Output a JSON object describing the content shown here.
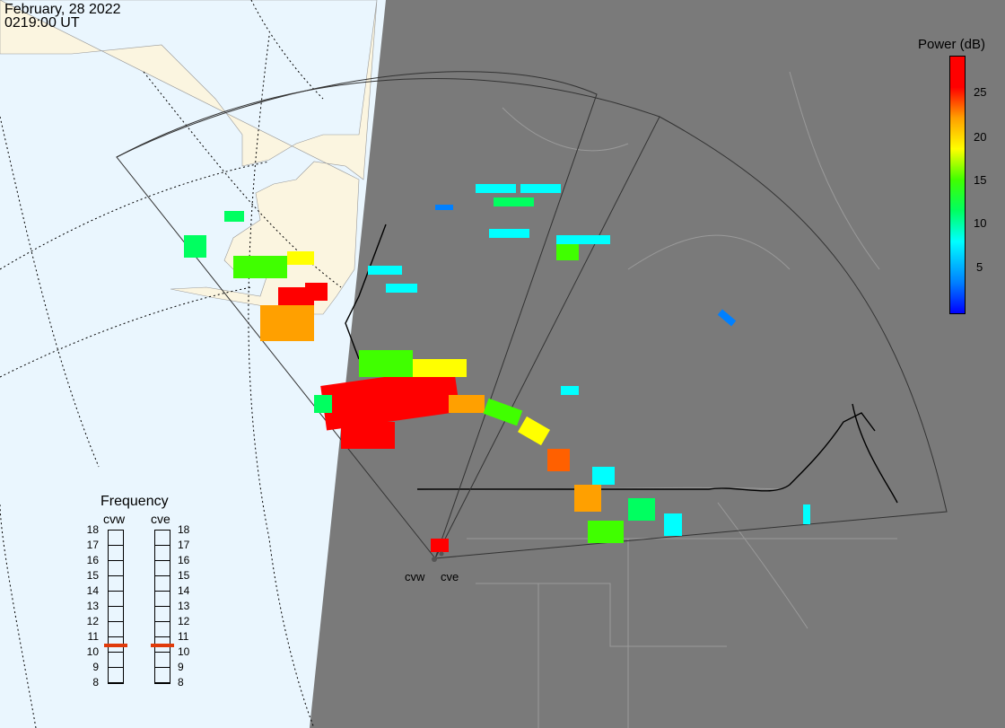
{
  "header": {
    "date": "February, 28 2022",
    "time": "0219:00 UT"
  },
  "colorbar": {
    "title": "Power (dB)",
    "ticks": [
      "25",
      "20",
      "15",
      "10",
      "5"
    ],
    "colors": [
      "#0000ff",
      "#0080ff",
      "#00ffff",
      "#00ff60",
      "#40ff00",
      "#ffff00",
      "#ffa000",
      "#ff0000"
    ]
  },
  "frequency": {
    "title": "Frequency",
    "radars": [
      {
        "name": "cvw",
        "selected_mhz": 11
      },
      {
        "name": "cve",
        "selected_mhz": 11
      }
    ],
    "scale": [
      "18",
      "17",
      "16",
      "15",
      "14",
      "13",
      "12",
      "11",
      "10",
      "9",
      "8"
    ],
    "marker_color": "#e03a0a"
  },
  "sites": {
    "labels": [
      "cvw",
      "cve"
    ]
  },
  "map": {
    "day_color": "#eaf6fe",
    "land_color": "#fbf5e0",
    "night_color": "#7a7a7a"
  }
}
